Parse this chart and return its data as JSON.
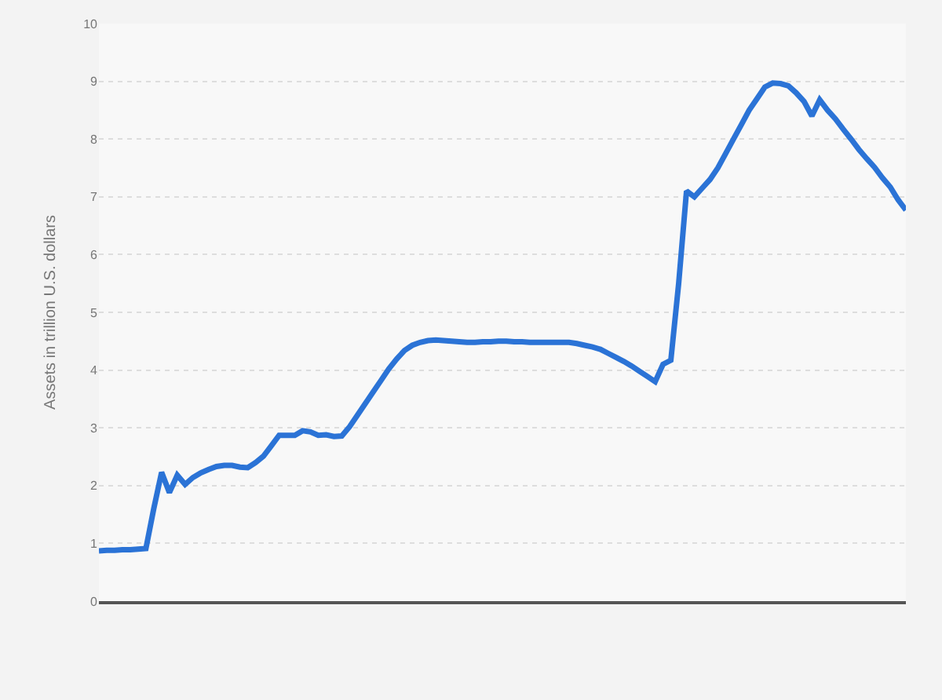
{
  "chart_data": {
    "type": "line",
    "ylabel": "Assets in trillion U.S. dollars",
    "categories": [
      null,
      null,
      null,
      null,
      null,
      null,
      null,
      null,
      null,
      null,
      null,
      null,
      null,
      null,
      null,
      null,
      null,
      null,
      null,
      null,
      null,
      null,
      null,
      null,
      null,
      null,
      null,
      null,
      null,
      null,
      null,
      null,
      null,
      null,
      null,
      null,
      null,
      null,
      null,
      null,
      null,
      null,
      null,
      null,
      null,
      null,
      null,
      null,
      null,
      null,
      null,
      null,
      null,
      null,
      null,
      null,
      null,
      null,
      null,
      null,
      null,
      null,
      null,
      null,
      null,
      null,
      null,
      null,
      null,
      null,
      null,
      null,
      null,
      null,
      null,
      null,
      null,
      null,
      null,
      null,
      null,
      null,
      null,
      null,
      null,
      null,
      null,
      null,
      null,
      null,
      null,
      null,
      null,
      null,
      null,
      null,
      null,
      null,
      null,
      null,
      null,
      null,
      null,
      null
    ],
    "series": [
      {
        "color": "#2b73d6",
        "values": [
          0.87,
          0.88,
          0.88,
          0.89,
          0.89,
          0.9,
          0.91,
          1.6,
          2.23,
          1.88,
          2.18,
          2.02,
          2.14,
          2.22,
          2.28,
          2.33,
          2.35,
          2.35,
          2.32,
          2.31,
          2.4,
          2.51,
          2.69,
          2.87,
          2.87,
          2.87,
          2.95,
          2.93,
          2.87,
          2.88,
          2.85,
          2.86,
          3.02,
          3.22,
          3.42,
          3.62,
          3.82,
          4.02,
          4.19,
          4.34,
          4.43,
          4.48,
          4.51,
          4.52,
          4.51,
          4.5,
          4.49,
          4.48,
          4.48,
          4.49,
          4.49,
          4.5,
          4.5,
          4.49,
          4.49,
          4.48,
          4.48,
          4.48,
          4.48,
          4.48,
          4.48,
          4.46,
          4.43,
          4.4,
          4.36,
          4.29,
          4.22,
          4.15,
          4.07,
          3.98,
          3.89,
          3.8,
          4.1,
          4.17,
          5.5,
          7.1,
          7.0,
          7.15,
          7.3,
          7.5,
          7.75,
          8.0,
          8.25,
          8.5,
          8.7,
          8.9,
          8.97,
          8.96,
          8.92,
          8.8,
          8.65,
          8.4,
          8.68,
          8.5,
          8.35,
          8.17,
          8.0,
          7.82,
          7.66,
          7.51,
          7.33,
          7.17,
          6.95,
          6.77
        ]
      }
    ],
    "ylim": [
      0,
      10
    ],
    "yticks": [
      0,
      1,
      2,
      3,
      4,
      5,
      6,
      7,
      8,
      9,
      10
    ],
    "grid": "y",
    "marker": "none",
    "line_style": "solid",
    "tick_labels": "y"
  }
}
